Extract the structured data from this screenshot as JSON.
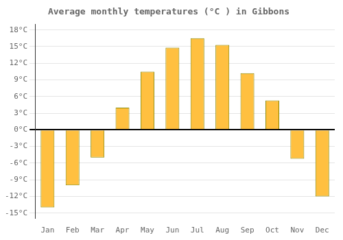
{
  "chart_data": {
    "type": "bar",
    "title": "Average monthly temperatures (°C ) in Gibbons",
    "categories": [
      "Jan",
      "Feb",
      "Mar",
      "Apr",
      "May",
      "Jun",
      "Jul",
      "Aug",
      "Sep",
      "Oct",
      "Nov",
      "Dec"
    ],
    "values": [
      -14,
      -10,
      -5,
      4,
      10.5,
      14.8,
      16.5,
      15.3,
      10.2,
      5.3,
      -5.2,
      -12
    ],
    "color": "#FFC040",
    "ylim": [
      -16,
      19
    ],
    "yticks": [
      {
        "value": -15,
        "label": "-15°C"
      },
      {
        "value": -12,
        "label": "-12°C"
      },
      {
        "value": -9,
        "label": "-9°C"
      },
      {
        "value": -6,
        "label": "-6°C"
      },
      {
        "value": -3,
        "label": "-3°C"
      },
      {
        "value": 0,
        "label": "0°C"
      },
      {
        "value": 3,
        "label": "3°C"
      },
      {
        "value": 6,
        "label": "6°C"
      },
      {
        "value": 9,
        "label": "9°C"
      },
      {
        "value": 12,
        "label": "12°C"
      },
      {
        "value": 15,
        "label": "15°C"
      },
      {
        "value": 18,
        "label": "18°C"
      }
    ],
    "grid": true
  }
}
